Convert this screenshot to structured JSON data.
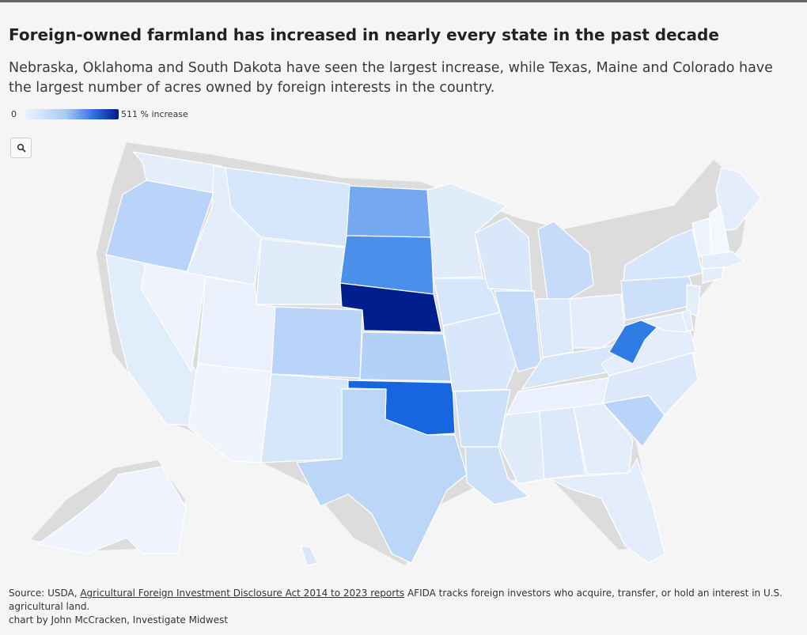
{
  "title": "Foreign-owned farmland has increased in nearly every state in the past decade",
  "subtitle": "Nebraska, Oklahoma and South Dakota have seen the largest increase, while Texas, Maine and Colorado have the largest number of acres owned by foreign interests in the country.",
  "legend": {
    "min_label": "0",
    "max_label": "511 % increase",
    "min_value": 0,
    "max_value": 511,
    "color_low": "#f1f6ff",
    "color_high": "#001a8c"
  },
  "zoom": {
    "icon": "search-icon"
  },
  "map": {
    "type": "choropleth",
    "region": "United States",
    "states": {
      "WA": "#e4eefb",
      "OR": "#b9d4f8",
      "CA": "#e2edfb",
      "NV": "#eef3fd",
      "ID": "#e4eefb",
      "MT": "#d6e6fb",
      "WY": "#e1ecfb",
      "UT": "#eaf1fc",
      "AZ": "#eff4fd",
      "CO": "#b9d4f8",
      "NM": "#d6e6fb",
      "ND": "#74a9f1",
      "SD": "#4a90ea",
      "NE": "#001f8c",
      "KS": "#b3d0f7",
      "OK": "#1766e0",
      "TX": "#bcd6f8",
      "MN": "#e1ecfb",
      "IA": "#d6e6fb",
      "MO": "#d9e7fb",
      "AR": "#cde0fa",
      "LA": "#cde0fa",
      "WI": "#d9e7fb",
      "IL": "#c5dbf9",
      "MI": "#c5dbf9",
      "IN": "#dde9fb",
      "OH": "#e3edfb",
      "KY": "#d6e6fb",
      "TN": "#eaf1fc",
      "MS": "#e1ecfb",
      "AL": "#dce9fb",
      "GA": "#e4eefb",
      "FL": "#e3edfb",
      "SC": "#b9d4f8",
      "NC": "#dde9fb",
      "VA": "#e3edfb",
      "WV": "#2f7de4",
      "PA": "#cde0fa",
      "NY": "#d6e6fb",
      "ME": "#e4eefb",
      "VT": "#eef3fd",
      "NH": "#f3f7fe",
      "MA": "#e4eefb",
      "CT": "#e4eefb",
      "NJ": "#e4eefb",
      "MD": "#e4eefb",
      "DE": "#e4eefb",
      "AK": "#eef3fd",
      "HI": "#dbe8fb"
    }
  },
  "footer": {
    "source_prefix": "Source: USDA, ",
    "source_link": "Agricultural Foreign Investment Disclosure Act 2014 to 2023 reports",
    "source_note": " AFIDA tracks foreign investors who acquire, transfer, or hold an interest in U.S. agricultural land.",
    "credit": "chart by John McCracken, Investigate Midwest"
  }
}
